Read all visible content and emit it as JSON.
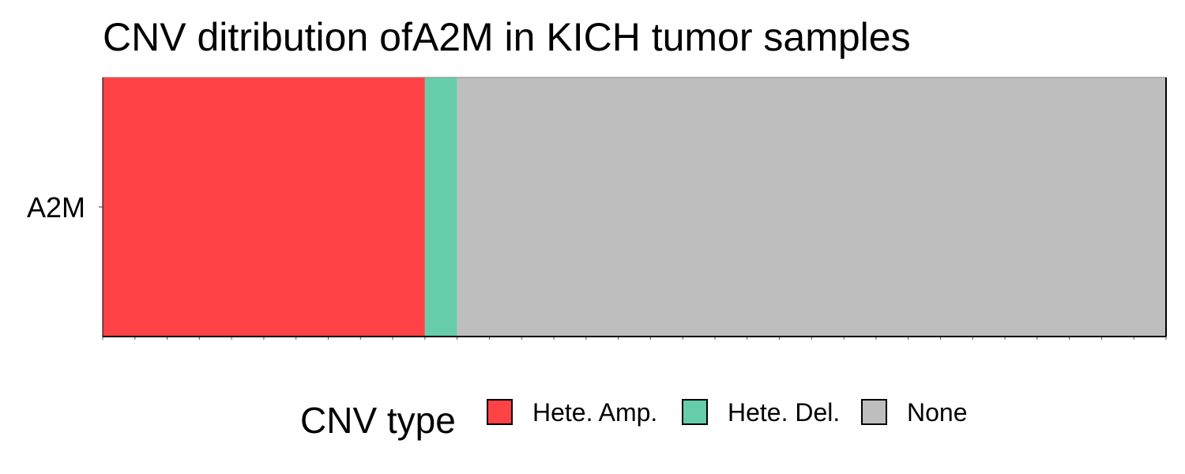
{
  "chart_data": {
    "type": "bar",
    "orientation": "horizontal",
    "stacked": true,
    "title": "CNV ditribution ofA2M in KICH tumor samples",
    "xlabel": "",
    "ylabel": "",
    "categories": [
      "A2M"
    ],
    "series": [
      {
        "name": "Hete. Amp.",
        "values": [
          10
        ],
        "color": "#FF4245"
      },
      {
        "name": "Hete. Del.",
        "values": [
          1
        ],
        "color": "#66CDAA"
      },
      {
        "name": "None",
        "values": [
          22
        ],
        "color": "#BEBEBE"
      }
    ],
    "sample_count": 33,
    "xlim": [
      0,
      33
    ],
    "grid": false,
    "legend": {
      "title": "CNV type",
      "position": "bottom",
      "items": [
        "Hete. Amp.",
        "Hete. Del.",
        "None"
      ]
    }
  }
}
